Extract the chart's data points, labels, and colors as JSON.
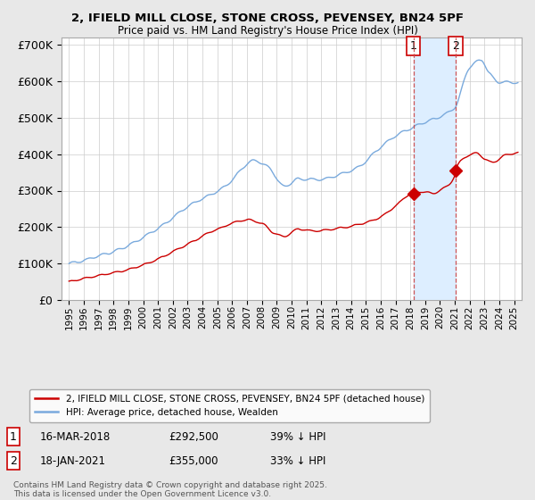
{
  "title_line1": "2, IFIELD MILL CLOSE, STONE CROSS, PEVENSEY, BN24 5PF",
  "title_line2": "Price paid vs. HM Land Registry's House Price Index (HPI)",
  "legend_label_red": "2, IFIELD MILL CLOSE, STONE CROSS, PEVENSEY, BN24 5PF (detached house)",
  "legend_label_blue": "HPI: Average price, detached house, Wealden",
  "footer": "Contains HM Land Registry data © Crown copyright and database right 2025.\nThis data is licensed under the Open Government Licence v3.0.",
  "annotation1": {
    "label": "1",
    "date": "16-MAR-2018",
    "price": 292500,
    "note": "39% ↓ HPI"
  },
  "annotation2": {
    "label": "2",
    "date": "18-JAN-2021",
    "price": 355000,
    "note": "33% ↓ HPI"
  },
  "sale1_x": 2018.21,
  "sale1_y": 292500,
  "sale2_x": 2021.05,
  "sale2_y": 355000,
  "ylim": [
    0,
    720000
  ],
  "xlim": [
    1994.5,
    2025.5
  ],
  "background_color": "#e8e8e8",
  "plot_bg_color": "#ffffff",
  "red_color": "#cc0000",
  "blue_color": "#7aaadd",
  "shade_color": "#ddeeff",
  "grid_color": "#cccccc"
}
